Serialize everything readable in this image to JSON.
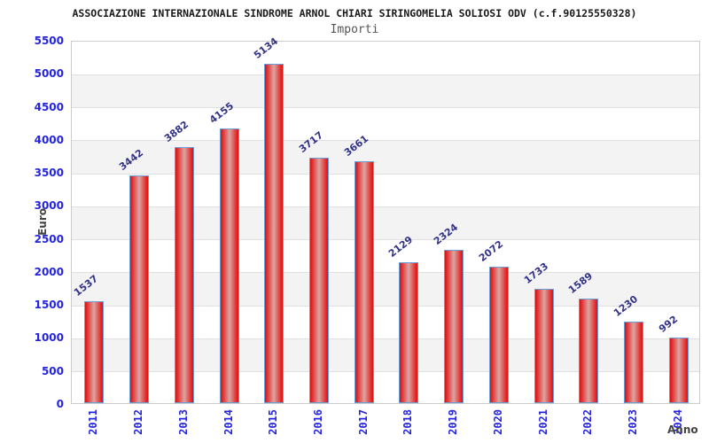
{
  "header": {
    "title": "ASSOCIAZIONE INTERNAZIONALE SINDROME ARNOL CHIARI SIRINGOMELIA SOLIOSI ODV (c.f.90125550328)",
    "subtitle": "Importi"
  },
  "chart_data": {
    "type": "bar",
    "title": "ASSOCIAZIONE INTERNAZIONALE SINDROME ARNOL CHIARI SIRINGOMELIA SOLIOSI ODV (c.f.90125550328)",
    "subtitle": "Importi",
    "categories": [
      "2011",
      "2012",
      "2013",
      "2014",
      "2015",
      "2016",
      "2017",
      "2018",
      "2019",
      "2020",
      "2021",
      "2022",
      "2023",
      "2024"
    ],
    "values": [
      1537,
      3442,
      3882,
      4155,
      5134,
      3717,
      3661,
      2129,
      2324,
      2072,
      1733,
      1589,
      1230,
      992
    ],
    "xlabel": "Anno",
    "ylabel": "Euro",
    "ylim": [
      0,
      5500
    ],
    "yticks": [
      0,
      500,
      1000,
      1500,
      2000,
      2500,
      3000,
      3500,
      4000,
      4500,
      5000,
      5500
    ],
    "grid": true,
    "alternating_bands": true,
    "legend": "none",
    "colors": {
      "bar_edge": "#da1010",
      "bar_mid": "#e24040",
      "bar_center": "#dca6a2",
      "bar_border": "#6a9fd8",
      "axis_tick_label": "#2424e0",
      "value_label": "#333388",
      "band_fill": "#f3f3f4",
      "gridline": "#e0e0e0",
      "plot_border": "#cccccc",
      "axis_title": "#444444",
      "title_color": "#1a1a1a",
      "subtitle_color": "#555555"
    }
  }
}
